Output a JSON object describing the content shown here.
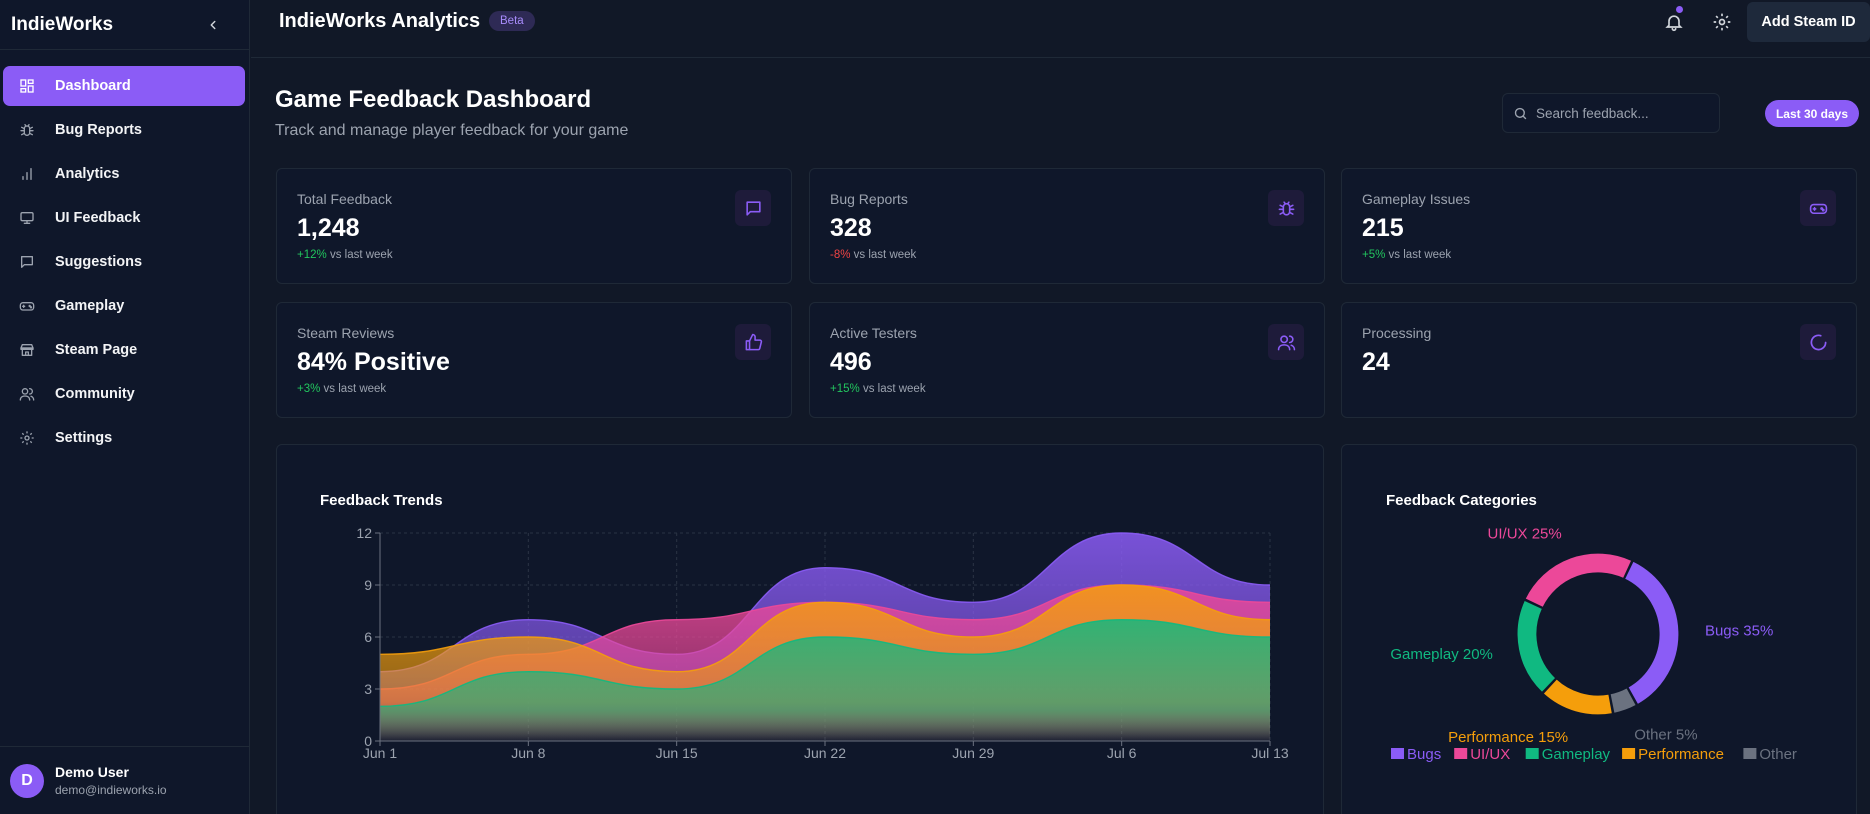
{
  "sidebar": {
    "brand": "IndieWorks",
    "items": [
      {
        "label": "Dashboard",
        "icon": "dashboard-icon",
        "active": true
      },
      {
        "label": "Bug Reports",
        "icon": "bug-icon"
      },
      {
        "label": "Analytics",
        "icon": "bar-chart-icon"
      },
      {
        "label": "UI Feedback",
        "icon": "monitor-icon"
      },
      {
        "label": "Suggestions",
        "icon": "message-icon"
      },
      {
        "label": "Gameplay",
        "icon": "gamepad-icon"
      },
      {
        "label": "Steam Page",
        "icon": "store-icon"
      },
      {
        "label": "Community",
        "icon": "users-icon"
      },
      {
        "label": "Settings",
        "icon": "gear-icon"
      }
    ],
    "user": {
      "initial": "D",
      "name": "Demo User",
      "email": "demo@indieworks.io"
    }
  },
  "topbar": {
    "title": "IndieWorks Analytics",
    "badge": "Beta",
    "add_steam_label": "Add Steam ID"
  },
  "header": {
    "title": "Game Feedback Dashboard",
    "subtitle": "Track and manage player feedback for your game",
    "search_placeholder": "Search feedback...",
    "range_label": "Last 30 days"
  },
  "stats": [
    {
      "label": "Total Feedback",
      "value": "1,248",
      "delta": "+12%",
      "delta_suffix": "vs last week",
      "trend": "up",
      "icon": "message-icon"
    },
    {
      "label": "Bug Reports",
      "value": "328",
      "delta": "-8%",
      "delta_suffix": "vs last week",
      "trend": "down",
      "icon": "bug-icon"
    },
    {
      "label": "Gameplay Issues",
      "value": "215",
      "delta": "+5%",
      "delta_suffix": "vs last week",
      "trend": "up",
      "icon": "gamepad-icon"
    },
    {
      "label": "Steam Reviews",
      "value": "84% Positive",
      "delta": "+3%",
      "delta_suffix": "vs last week",
      "trend": "up",
      "icon": "thumbs-up-icon"
    },
    {
      "label": "Active Testers",
      "value": "496",
      "delta": "+15%",
      "delta_suffix": "vs last week",
      "trend": "up",
      "icon": "users-icon"
    },
    {
      "label": "Processing",
      "value": "24",
      "icon": "spinner-icon"
    }
  ],
  "colors": {
    "accent": "#8b5cf6",
    "bugs": "#8b5cf6",
    "uiux": "#ec4899",
    "gameplay": "#10b981",
    "performance": "#f59e0b",
    "other": "#6b7280"
  },
  "chart_data": [
    {
      "type": "area",
      "title": "Feedback Trends",
      "x": [
        "Jun 1",
        "Jun 8",
        "Jun 15",
        "Jun 22",
        "Jun 29",
        "Jul 6",
        "Jul 13"
      ],
      "ylim": [
        0,
        12
      ],
      "yticks": [
        0,
        3,
        6,
        9,
        12
      ],
      "grid": true,
      "series": [
        {
          "name": "Bugs",
          "color": "#8b5cf6",
          "values": [
            4,
            7,
            5,
            10,
            8,
            12,
            9
          ]
        },
        {
          "name": "UI/UX",
          "color": "#ec4899",
          "values": [
            3,
            5,
            7,
            8,
            7,
            9,
            8
          ]
        },
        {
          "name": "Performance",
          "color": "#f59e0b",
          "values": [
            5,
            6,
            4,
            8,
            6,
            9,
            7
          ]
        },
        {
          "name": "Gameplay",
          "color": "#10b981",
          "values": [
            2,
            4,
            3,
            6,
            5,
            7,
            6
          ]
        }
      ]
    },
    {
      "type": "pie",
      "title": "Feedback Categories",
      "donut": true,
      "slices": [
        {
          "name": "Bugs",
          "value": 35,
          "label": "Bugs 35%",
          "color": "#8b5cf6"
        },
        {
          "name": "Other",
          "value": 5,
          "label": "Other 5%",
          "color": "#6b7280"
        },
        {
          "name": "Performance",
          "value": 15,
          "label": "Performance 15%",
          "color": "#f59e0b"
        },
        {
          "name": "Gameplay",
          "value": 20,
          "label": "Gameplay 20%",
          "color": "#10b981"
        },
        {
          "name": "UI/UX",
          "value": 25,
          "label": "UI/UX 25%",
          "color": "#ec4899"
        }
      ],
      "legend": [
        "Bugs",
        "UI/UX",
        "Gameplay",
        "Performance",
        "Other"
      ],
      "legend_position": "bottom"
    }
  ]
}
